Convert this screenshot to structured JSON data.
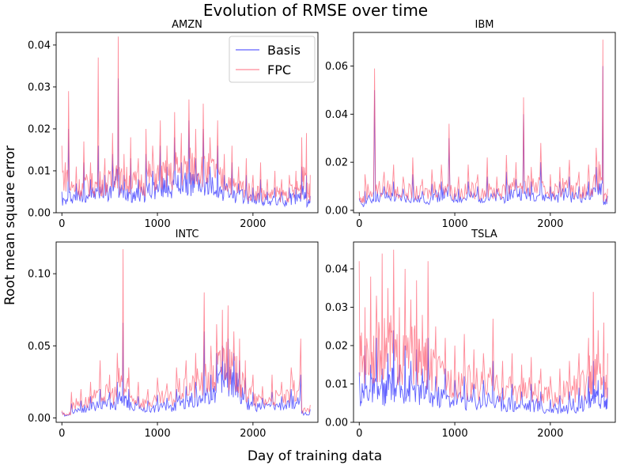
{
  "suptitle": "Evolution of RMSE over time",
  "supxlabel": "Day of training data",
  "supylabel": "Root mean square error",
  "colors": {
    "basis": "#3b3bff",
    "fpc": "#ff5a6e"
  },
  "chart_data": [
    {
      "type": "line",
      "title": "AMZN",
      "xlim": [
        -60,
        2680
      ],
      "ylim": [
        0,
        0.043
      ],
      "xticks": [
        0,
        1000,
        2000
      ],
      "xtick_labels": [
        "0",
        "1000",
        "2000"
      ],
      "yticks": [
        0.0,
        0.01,
        0.02,
        0.03,
        0.04
      ],
      "ytick_labels": [
        "0.00",
        "0.01",
        "0.02",
        "0.03",
        "0.04"
      ],
      "legend": {
        "position": "top-right",
        "entries": [
          "Basis",
          "FPC"
        ]
      },
      "series": [
        {
          "name": "Basis",
          "x": [
            0,
            70,
            150,
            230,
            300,
            380,
            450,
            530,
            590,
            650,
            720,
            800,
            880,
            950,
            1030,
            1100,
            1180,
            1250,
            1330,
            1400,
            1480,
            1550,
            1630,
            1700,
            1780,
            1850,
            1930,
            2000,
            2080,
            2150,
            2230,
            2300,
            2380,
            2450,
            2510,
            2560,
            2600
          ],
          "values": [
            0.005,
            0.02,
            0.007,
            0.012,
            0.008,
            0.016,
            0.009,
            0.014,
            0.032,
            0.009,
            0.013,
            0.008,
            0.014,
            0.01,
            0.016,
            0.011,
            0.018,
            0.012,
            0.022,
            0.013,
            0.02,
            0.011,
            0.016,
            0.009,
            0.012,
            0.007,
            0.009,
            0.006,
            0.008,
            0.005,
            0.006,
            0.005,
            0.006,
            0.006,
            0.011,
            0.009,
            0.004
          ]
        },
        {
          "name": "FPC",
          "x": [
            0,
            70,
            150,
            230,
            300,
            380,
            450,
            530,
            590,
            650,
            720,
            800,
            880,
            950,
            1030,
            1100,
            1180,
            1250,
            1330,
            1400,
            1480,
            1550,
            1630,
            1700,
            1780,
            1850,
            1930,
            2000,
            2080,
            2150,
            2230,
            2300,
            2380,
            2450,
            2510,
            2560,
            2600
          ],
          "values": [
            0.016,
            0.029,
            0.011,
            0.017,
            0.012,
            0.037,
            0.013,
            0.019,
            0.042,
            0.014,
            0.018,
            0.013,
            0.02,
            0.016,
            0.022,
            0.016,
            0.024,
            0.019,
            0.027,
            0.02,
            0.026,
            0.018,
            0.022,
            0.014,
            0.016,
            0.011,
            0.013,
            0.009,
            0.012,
            0.008,
            0.01,
            0.008,
            0.009,
            0.01,
            0.018,
            0.019,
            0.009
          ]
        }
      ]
    },
    {
      "type": "line",
      "title": "IBM",
      "xlim": [
        -60,
        2680
      ],
      "ylim": [
        -0.001,
        0.074
      ],
      "xticks": [
        0,
        1000,
        2000
      ],
      "xtick_labels": [
        "0",
        "1000",
        "2000"
      ],
      "yticks": [
        0.0,
        0.02,
        0.04,
        0.06
      ],
      "ytick_labels": [
        "0.00",
        "0.02",
        "0.04",
        "0.06"
      ],
      "series": [
        {
          "name": "Basis",
          "x": [
            0,
            60,
            160,
            260,
            360,
            460,
            560,
            660,
            760,
            860,
            940,
            1040,
            1140,
            1240,
            1340,
            1440,
            1540,
            1640,
            1720,
            1800,
            1900,
            2000,
            2100,
            2200,
            2300,
            2400,
            2480,
            2550,
            2600
          ],
          "values": [
            0.005,
            0.008,
            0.05,
            0.01,
            0.012,
            0.009,
            0.015,
            0.008,
            0.011,
            0.012,
            0.03,
            0.009,
            0.012,
            0.01,
            0.014,
            0.009,
            0.016,
            0.013,
            0.04,
            0.012,
            0.02,
            0.01,
            0.012,
            0.014,
            0.01,
            0.012,
            0.018,
            0.06,
            0.006
          ]
        },
        {
          "name": "FPC",
          "x": [
            0,
            60,
            160,
            260,
            360,
            460,
            560,
            660,
            760,
            860,
            940,
            1040,
            1140,
            1240,
            1340,
            1440,
            1540,
            1640,
            1720,
            1800,
            1900,
            2000,
            2100,
            2200,
            2300,
            2400,
            2480,
            2550,
            2600
          ],
          "values": [
            0.008,
            0.015,
            0.059,
            0.016,
            0.019,
            0.014,
            0.022,
            0.013,
            0.017,
            0.019,
            0.036,
            0.014,
            0.019,
            0.015,
            0.022,
            0.014,
            0.023,
            0.02,
            0.047,
            0.018,
            0.028,
            0.015,
            0.018,
            0.021,
            0.016,
            0.019,
            0.026,
            0.071,
            0.009
          ]
        }
      ]
    },
    {
      "type": "line",
      "title": "INTC",
      "xlim": [
        -60,
        2680
      ],
      "ylim": [
        -0.003,
        0.122
      ],
      "xticks": [
        0,
        1000,
        2000
      ],
      "xtick_labels": [
        "0",
        "1000",
        "2000"
      ],
      "yticks": [
        0.0,
        0.05,
        0.1
      ],
      "ytick_labels": [
        "0.00",
        "0.05",
        "0.10"
      ],
      "series": [
        {
          "name": "Basis",
          "x": [
            0,
            100,
            200,
            300,
            400,
            500,
            580,
            640,
            700,
            800,
            900,
            1000,
            1100,
            1200,
            1300,
            1400,
            1490,
            1560,
            1620,
            1680,
            1740,
            1800,
            1860,
            1920,
            2000,
            2100,
            2200,
            2300,
            2400,
            2500,
            2600
          ],
          "values": [
            0.004,
            0.01,
            0.012,
            0.015,
            0.02,
            0.018,
            0.025,
            0.066,
            0.02,
            0.015,
            0.012,
            0.016,
            0.014,
            0.02,
            0.022,
            0.025,
            0.06,
            0.03,
            0.045,
            0.05,
            0.055,
            0.045,
            0.04,
            0.028,
            0.018,
            0.014,
            0.018,
            0.015,
            0.02,
            0.03,
            0.006
          ]
        },
        {
          "name": "FPC",
          "x": [
            0,
            100,
            200,
            300,
            400,
            500,
            580,
            640,
            700,
            800,
            900,
            1000,
            1100,
            1200,
            1300,
            1400,
            1490,
            1560,
            1620,
            1680,
            1740,
            1800,
            1860,
            1920,
            2000,
            2100,
            2200,
            2300,
            2400,
            2500,
            2600
          ],
          "values": [
            0.005,
            0.018,
            0.02,
            0.025,
            0.04,
            0.03,
            0.045,
            0.117,
            0.035,
            0.025,
            0.02,
            0.028,
            0.024,
            0.035,
            0.04,
            0.045,
            0.087,
            0.05,
            0.065,
            0.075,
            0.078,
            0.06,
            0.055,
            0.04,
            0.03,
            0.022,
            0.03,
            0.025,
            0.035,
            0.055,
            0.009
          ]
        }
      ]
    },
    {
      "type": "line",
      "title": "TSLA",
      "xlim": [
        -60,
        2680
      ],
      "ylim": [
        0,
        0.047
      ],
      "xticks": [
        0,
        1000,
        2000
      ],
      "xtick_labels": [
        "0",
        "1000",
        "2000"
      ],
      "yticks": [
        0.0,
        0.01,
        0.02,
        0.03,
        0.04
      ],
      "ytick_labels": [
        "0.00",
        "0.01",
        "0.02",
        "0.03",
        "0.04"
      ],
      "series": [
        {
          "name": "Basis",
          "x": [
            0,
            60,
            120,
            180,
            240,
            300,
            360,
            420,
            480,
            540,
            600,
            660,
            720,
            800,
            900,
            1000,
            1100,
            1200,
            1300,
            1400,
            1500,
            1600,
            1700,
            1800,
            1900,
            2000,
            2100,
            2200,
            2300,
            2400,
            2450,
            2500,
            2560,
            2600
          ],
          "values": [
            0.013,
            0.02,
            0.015,
            0.022,
            0.014,
            0.018,
            0.024,
            0.015,
            0.02,
            0.016,
            0.019,
            0.014,
            0.022,
            0.012,
            0.014,
            0.011,
            0.012,
            0.01,
            0.011,
            0.016,
            0.009,
            0.01,
            0.008,
            0.01,
            0.008,
            0.006,
            0.007,
            0.008,
            0.009,
            0.012,
            0.016,
            0.011,
            0.012,
            0.009
          ]
        },
        {
          "name": "FPC",
          "x": [
            0,
            60,
            120,
            180,
            240,
            300,
            360,
            420,
            480,
            540,
            600,
            660,
            720,
            800,
            900,
            1000,
            1100,
            1200,
            1300,
            1400,
            1500,
            1600,
            1700,
            1800,
            1900,
            2000,
            2100,
            2200,
            2300,
            2400,
            2450,
            2500,
            2560,
            2600
          ],
          "values": [
            0.042,
            0.03,
            0.038,
            0.033,
            0.044,
            0.035,
            0.045,
            0.03,
            0.04,
            0.032,
            0.037,
            0.028,
            0.042,
            0.025,
            0.022,
            0.02,
            0.023,
            0.019,
            0.018,
            0.027,
            0.016,
            0.018,
            0.015,
            0.017,
            0.014,
            0.012,
            0.014,
            0.016,
            0.018,
            0.022,
            0.034,
            0.024,
            0.026,
            0.018
          ]
        }
      ]
    }
  ]
}
